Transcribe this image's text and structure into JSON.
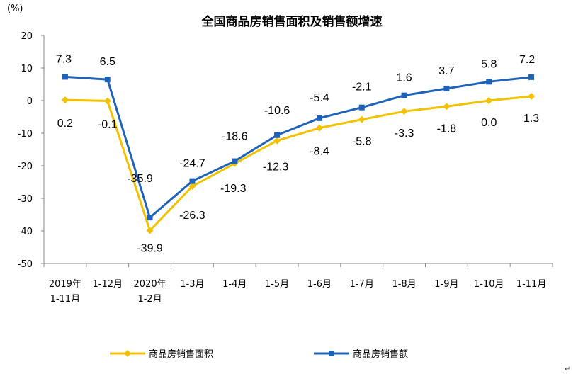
{
  "chart_data": {
    "type": "line",
    "title": "全国商品房销售面积及销售额增速",
    "ylabel": "(%)",
    "ylim": [
      -50,
      20
    ],
    "yticks": [
      20,
      10,
      0,
      -10,
      -20,
      -30,
      -40,
      -50
    ],
    "categories": [
      [
        "2019年",
        "1-11月"
      ],
      [
        "1-12月"
      ],
      [
        "2020年",
        "1-2月"
      ],
      [
        "1-3月"
      ],
      [
        "1-4月"
      ],
      [
        "1-5月"
      ],
      [
        "1-6月"
      ],
      [
        "1-7月"
      ],
      [
        "1-8月"
      ],
      [
        "1-9月"
      ],
      [
        "1-10月"
      ],
      [
        "1-11月"
      ]
    ],
    "series": [
      {
        "name": "商品房销售面积",
        "color": "#F2C200",
        "marker": "diamond",
        "values": [
          0.2,
          -0.1,
          -39.9,
          -26.3,
          -19.3,
          -12.3,
          -8.4,
          -5.8,
          -3.3,
          -1.8,
          0.0,
          1.3
        ],
        "labels": [
          "0.2",
          "-0.1",
          "-39.9",
          "-26.3",
          "-19.3",
          "-12.3",
          "-8.4",
          "-5.8",
          "-3.3",
          "-1.8",
          "0.0",
          "1.3"
        ]
      },
      {
        "name": "商品房销售额",
        "color": "#1F63B8",
        "marker": "square",
        "values": [
          7.3,
          6.5,
          -35.9,
          -24.7,
          -18.6,
          -10.6,
          -5.4,
          -2.1,
          1.6,
          3.7,
          5.8,
          7.2
        ],
        "labels": [
          "7.3",
          "6.5",
          "-35.9",
          "-24.7",
          "-18.6",
          "-10.6",
          "-5.4",
          "-2.1",
          "1.6",
          "3.7",
          "5.8",
          "7.2"
        ]
      }
    ],
    "legend_position": "bottom",
    "grid": false
  },
  "corner_mark": "↵"
}
